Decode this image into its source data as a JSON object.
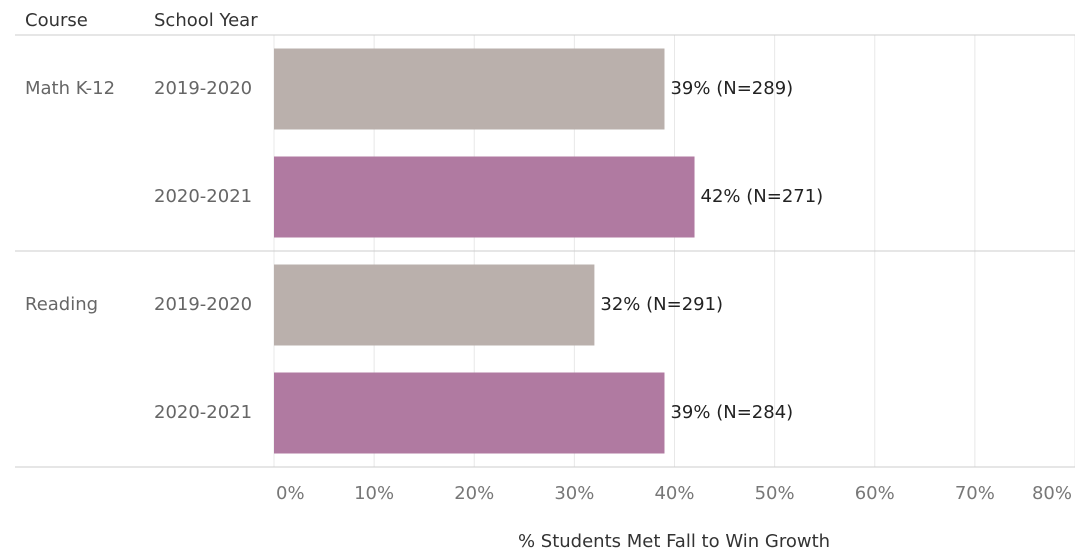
{
  "chart_data": {
    "type": "bar",
    "orientation": "horizontal",
    "column_headers": [
      "Course",
      "School Year"
    ],
    "groups": [
      {
        "name": "Math K-12",
        "categories": [
          "2019-2020",
          "2020-2021"
        ],
        "values": [
          39,
          42
        ],
        "value_labels": [
          "39% (N=289)",
          "42% (N=271)"
        ]
      },
      {
        "name": "Reading",
        "categories": [
          "2019-2020",
          "2020-2021"
        ],
        "values": [
          32,
          39
        ],
        "value_labels": [
          "32% (N=291)",
          "39% (N=284)"
        ]
      }
    ],
    "colors": [
      "#bab0ac",
      "#b07aa1"
    ],
    "xlabel": "% Students Met Fall to Win Growth",
    "xlim": [
      0,
      80
    ],
    "xticks": [
      {
        "value": 0,
        "label": "0%"
      },
      {
        "value": 10,
        "label": "10%"
      },
      {
        "value": 20,
        "label": "20%"
      },
      {
        "value": 30,
        "label": "30%"
      },
      {
        "value": 40,
        "label": "40%"
      },
      {
        "value": 50,
        "label": "50%"
      },
      {
        "value": 60,
        "label": "60%"
      },
      {
        "value": 70,
        "label": "70%"
      },
      {
        "value": 80,
        "label": "80%"
      }
    ],
    "grid": true
  }
}
